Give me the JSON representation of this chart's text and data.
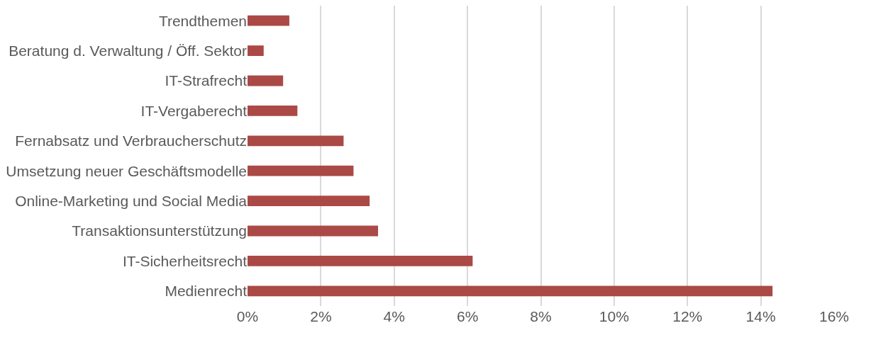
{
  "chart_data": {
    "type": "bar",
    "orientation": "horizontal",
    "categories": [
      "Trendthemen",
      "Beratung d. Verwaltung / Öff. Sektor",
      "IT-Strafrecht",
      "IT-Vergaberecht",
      "Fernabsatz und Verbraucherschutz",
      "Umsetzung neuer Geschäftsmodelle",
      "Online-Marketing und Social Media",
      "Transaktionsunterstützung",
      "IT-Sicherheitsrecht",
      "Medienrecht"
    ],
    "values": [
      1.14,
      0.44,
      0.97,
      1.36,
      2.62,
      2.89,
      3.33,
      3.56,
      6.14,
      14.32
    ],
    "color": "#aa4945",
    "xlim": [
      0,
      16
    ],
    "xticks": [
      {
        "value": 0,
        "label": "0%"
      },
      {
        "value": 2,
        "label": "2%"
      },
      {
        "value": 4,
        "label": "4%"
      },
      {
        "value": 6,
        "label": "6%"
      },
      {
        "value": 8,
        "label": "8%"
      },
      {
        "value": 10,
        "label": "10%"
      },
      {
        "value": 12,
        "label": "12%"
      },
      {
        "value": 14,
        "label": "14%"
      },
      {
        "value": 16,
        "label": "16%"
      }
    ],
    "grid": "x"
  }
}
